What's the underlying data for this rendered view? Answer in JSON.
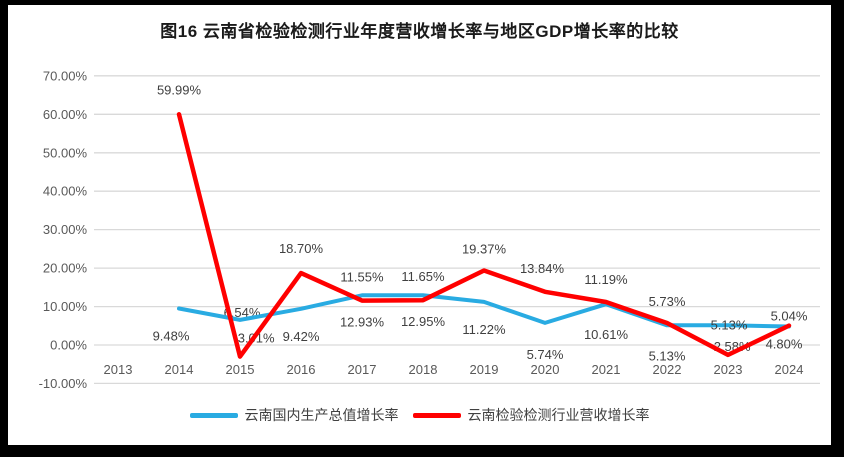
{
  "chart_data": {
    "type": "line",
    "title": "图16  云南省检验检测行业年度营收增长率与地区GDP增长率的比较",
    "categories": [
      "2013",
      "2014",
      "2015",
      "2016",
      "2017",
      "2018",
      "2019",
      "2020",
      "2021",
      "2022",
      "2023",
      "2024"
    ],
    "y_axis": {
      "min": -10,
      "max": 70,
      "step": 10,
      "format": "percent",
      "tick_labels": [
        "70.00%",
        "60.00%",
        "50.00%",
        "40.00%",
        "30.00%",
        "20.00%",
        "10.00%",
        "0.00%",
        "-10.00%"
      ]
    },
    "grid": true,
    "legend_position": "bottom",
    "colors": {
      "grid": "#D9D9D9",
      "axis_text": "#595959",
      "label_text": "#404040",
      "title_text": "#1a1a1a",
      "frame": "#000000",
      "background": "#FFFFFF"
    },
    "series": [
      {
        "name": "云南国内生产总值增长率",
        "color": "#29ABE2",
        "values": [
          null,
          9.48,
          6.54,
          9.42,
          12.93,
          12.95,
          11.22,
          5.74,
          10.61,
          5.13,
          5.13,
          4.8
        ],
        "labels": [
          null,
          "9.48%",
          "6.54%",
          "9.42%",
          "12.93%",
          "12.95%",
          "11.22%",
          "5.74%",
          "10.61%",
          "5.13%",
          "5.13%",
          "4.80%"
        ],
        "label_dx": [
          0,
          -8,
          2,
          0,
          0,
          0,
          0,
          0,
          0,
          0,
          1,
          -5
        ],
        "label_dy": [
          0,
          32,
          -3,
          32,
          31,
          31,
          32,
          36,
          35,
          35,
          4,
          22
        ],
        "label_behind": [
          false,
          false,
          true,
          false,
          false,
          false,
          false,
          false,
          false,
          false,
          false,
          false
        ]
      },
      {
        "name": "云南检验检测行业营收增长率",
        "color": "#FF0000",
        "values": [
          null,
          59.99,
          -3.01,
          18.7,
          11.55,
          11.65,
          19.37,
          13.84,
          11.19,
          5.73,
          -2.58,
          5.04
        ],
        "labels": [
          null,
          "59.99%",
          "-3.01%",
          "18.70%",
          "11.55%",
          "11.65%",
          "19.37%",
          "13.84%",
          "11.19%",
          "5.73%",
          "-2.58%",
          "5.04%"
        ],
        "label_dx": [
          0,
          0,
          14,
          0,
          0,
          0,
          0,
          -3,
          0,
          0,
          2,
          0
        ],
        "label_dy": [
          0,
          -20,
          -14,
          -20,
          -19,
          -19,
          -17,
          -19,
          -18,
          -17,
          -4,
          -5
        ],
        "label_behind": [
          false,
          false,
          true,
          false,
          false,
          false,
          false,
          false,
          false,
          false,
          true,
          false
        ]
      }
    ]
  }
}
